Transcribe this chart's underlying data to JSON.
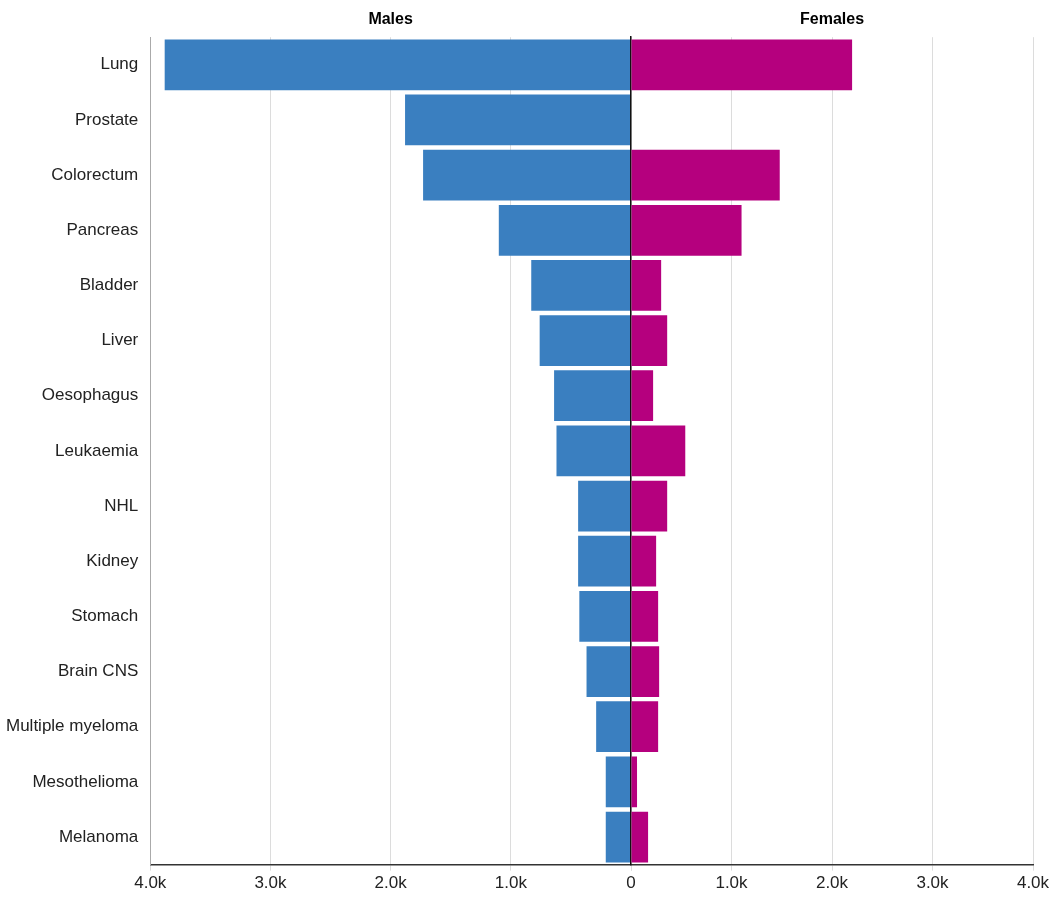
{
  "chart_data": [
    {
      "type": "bar",
      "orientation": "horizontal",
      "title": "Males",
      "categories": [
        "Lung",
        "Prostate",
        "Colorectum",
        "Pancreas",
        "Bladder",
        "Liver",
        "Oesophagus",
        "Leukaemia",
        "NHL",
        "Kidney",
        "Stomach",
        "Brain CNS",
        "Multiple myeloma",
        "Mesothelioma",
        "Melanoma"
      ],
      "series": [
        {
          "color": "#3a7fc0",
          "values": [
            3880,
            1880,
            1730,
            1100,
            830,
            760,
            640,
            620,
            440,
            440,
            430,
            370,
            290,
            210,
            210
          ]
        }
      ],
      "xlim": [
        4000,
        0
      ],
      "xticks": [
        {
          "value": 4000,
          "label": "4.0k"
        },
        {
          "value": 3000,
          "label": "3.0k"
        },
        {
          "value": 2000,
          "label": "2.0k"
        },
        {
          "value": 1000,
          "label": "1.0k"
        },
        0
      ],
      "grid": "x"
    },
    {
      "type": "bar",
      "orientation": "horizontal",
      "title": "Females",
      "categories": [
        null,
        null,
        null,
        null,
        null,
        null,
        null,
        null,
        null,
        null,
        null,
        null,
        null,
        null,
        null
      ],
      "series": [
        {
          "color": "#b5007e",
          "values": [
            2200,
            null,
            1480,
            1100,
            300,
            360,
            220,
            540,
            360,
            250,
            270,
            280,
            270,
            60,
            170
          ]
        }
      ],
      "xlim": [
        0,
        4000
      ],
      "xticks": [
        {
          "value": 0,
          "label": null
        },
        {
          "value": 1000,
          "label": "1.0k"
        },
        {
          "value": 2000,
          "label": "2.0k"
        },
        {
          "value": 3000,
          "label": "3.0k"
        },
        {
          "value": 4000,
          "label": "4.0k"
        }
      ],
      "grid": "x",
      "tick_labels": "x"
    }
  ]
}
